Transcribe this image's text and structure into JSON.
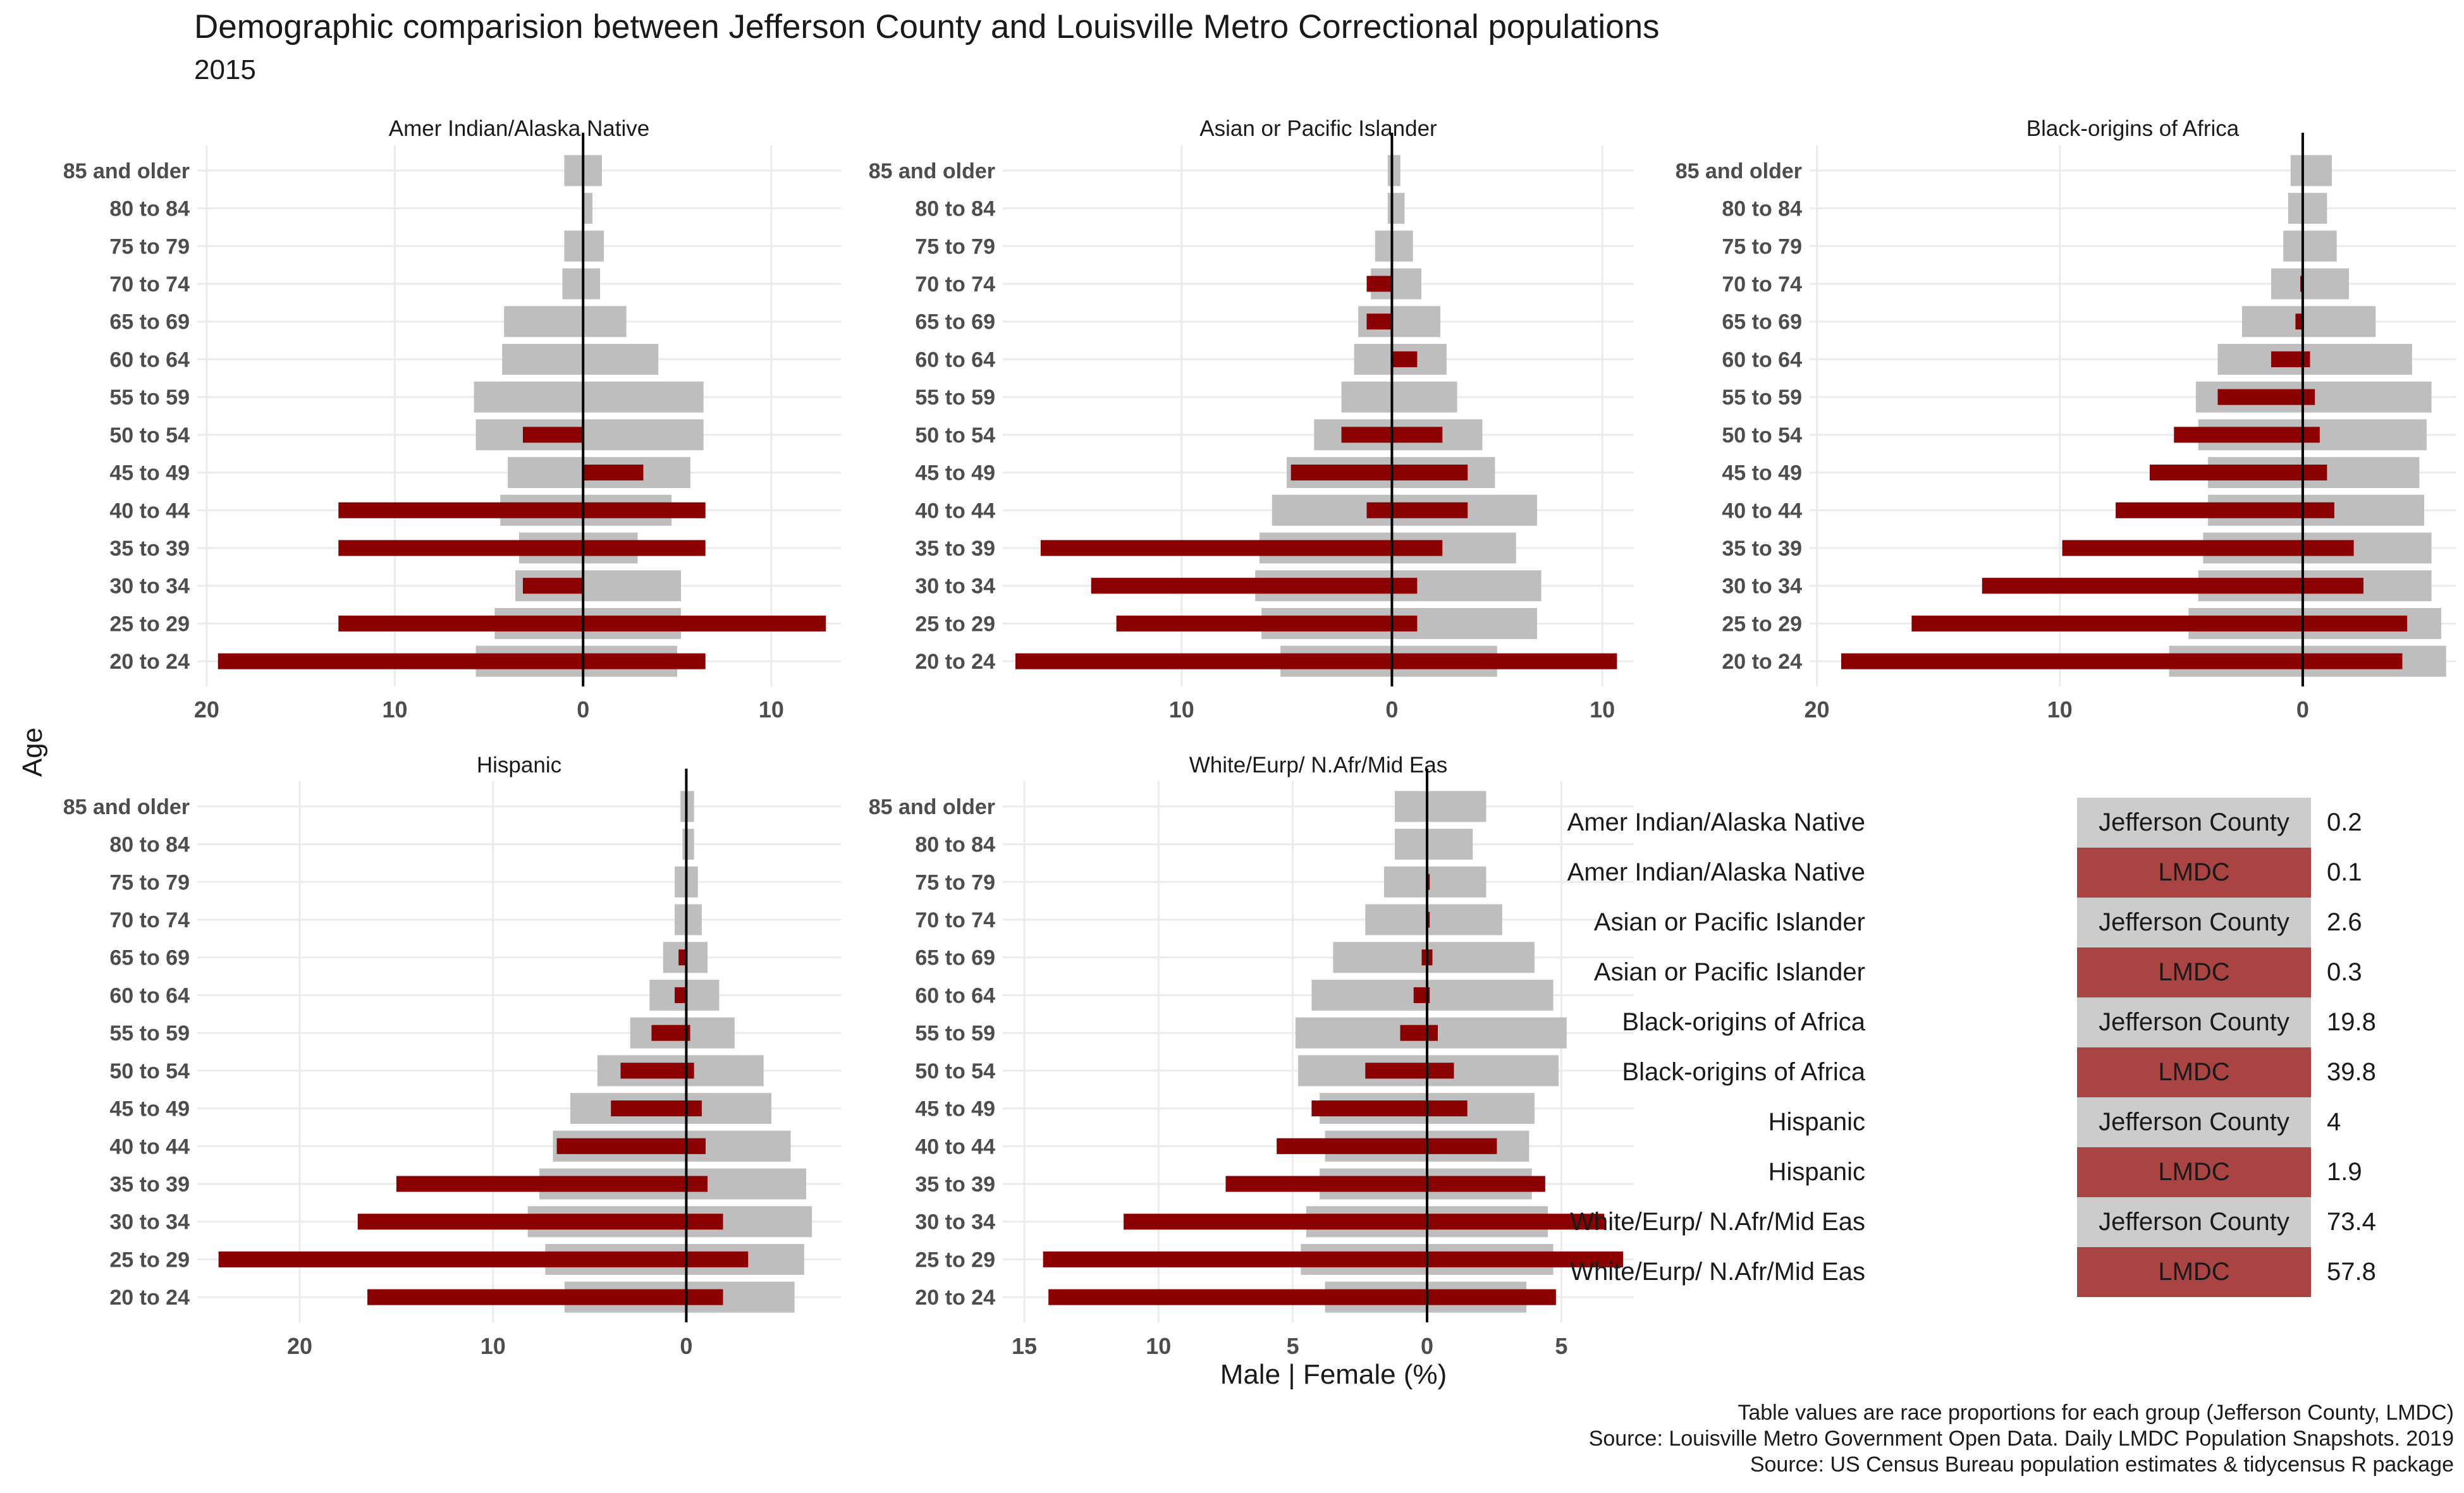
{
  "title": "Demographic comparision between Jefferson County and Louisville Metro Correctional populations",
  "subtitle": "2015",
  "ylabel": "Age",
  "xlabel": "Male | Female (%)",
  "caption": [
    "Table values are race proportions for each group (Jefferson County, LMDC)",
    "Source: Louisville Metro Government Open Data. Daily LMDC Population Snapshots. 2019",
    "Source: US Census Bureau population estimates & tidycensus R package"
  ],
  "colors": {
    "jefferson": "#bebebe",
    "lmdc": "#8b0000",
    "grid": "#ebebeb",
    "zero": "#000000",
    "table_jefferson": "#cccccc",
    "table_lmdc": "#a94442"
  },
  "chart_data": [
    {
      "type": "bar",
      "title": "Amer Indian/Alaska Native",
      "categories": [
        "85 and older",
        "80 to 84",
        "75 to 79",
        "70 to 74",
        "65 to 69",
        "60 to 64",
        "55 to 59",
        "50 to 54",
        "45 to 49",
        "40 to 44",
        "35 to 39",
        "30 to 34",
        "25 to 29",
        "20 to 24"
      ],
      "xlim": [
        -20.5,
        13.7
      ],
      "xticks": [
        -20,
        -10,
        0,
        10
      ],
      "xtick_labels": [
        "20",
        "10",
        "0",
        "10"
      ],
      "series": [
        {
          "name": "Jefferson County",
          "male": [
            1.0,
            0,
            1.0,
            1.1,
            4.2,
            4.3,
            5.8,
            5.7,
            4.0,
            4.4,
            3.4,
            3.6,
            4.7,
            5.7
          ],
          "female": [
            1.0,
            0.5,
            1.1,
            0.9,
            2.3,
            4.0,
            6.4,
            6.4,
            5.7,
            4.7,
            2.9,
            5.2,
            5.2,
            5.0
          ]
        },
        {
          "name": "LMDC",
          "male": [
            0,
            0,
            0,
            0,
            0,
            0,
            0,
            3.2,
            0,
            13.0,
            13.0,
            3.2,
            13.0,
            19.4
          ],
          "female": [
            0,
            0,
            0,
            0,
            0,
            0,
            0,
            0,
            3.2,
            6.5,
            6.5,
            0,
            12.9,
            6.5
          ]
        }
      ]
    },
    {
      "type": "bar",
      "title": "Asian or Pacific Islander",
      "categories": [
        "85 and older",
        "80 to 84",
        "75 to 79",
        "70 to 74",
        "65 to 69",
        "60 to 64",
        "55 to 59",
        "50 to 54",
        "45 to 49",
        "40 to 44",
        "35 to 39",
        "30 to 34",
        "25 to 29",
        "20 to 24"
      ],
      "xlim": [
        -18.5,
        11.5
      ],
      "xticks": [
        -10,
        0,
        10
      ],
      "xtick_labels": [
        "10",
        "0",
        "10"
      ],
      "series": [
        {
          "name": "Jefferson County",
          "male": [
            0.2,
            0.2,
            0.8,
            1.0,
            1.6,
            1.8,
            2.4,
            3.7,
            5.0,
            5.7,
            6.3,
            6.5,
            6.2,
            5.3
          ],
          "female": [
            0.4,
            0.6,
            1.0,
            1.4,
            2.3,
            2.6,
            3.1,
            4.3,
            4.9,
            6.9,
            5.9,
            7.1,
            6.9,
            5.0
          ],
          "zero_x": 0
        },
        {
          "name": "LMDC",
          "male": [
            0,
            0,
            0,
            1.2,
            1.2,
            0,
            0,
            2.4,
            4.8,
            1.2,
            16.7,
            14.3,
            13.1,
            17.9
          ],
          "female": [
            0,
            0,
            0,
            0,
            0,
            1.2,
            0,
            2.4,
            3.6,
            3.6,
            2.4,
            1.2,
            1.2,
            10.7
          ]
        }
      ]
    },
    {
      "type": "bar",
      "title": "Black-origins of Africa",
      "categories": [
        "85 and older",
        "80 to 84",
        "75 to 79",
        "70 to 74",
        "65 to 69",
        "60 to 64",
        "55 to 59",
        "50 to 54",
        "45 to 49",
        "40 to 44",
        "35 to 39",
        "30 to 34",
        "25 to 29",
        "20 to 24"
      ],
      "xlim": [
        -20.3,
        6.3
      ],
      "xticks": [
        -20,
        -10,
        0
      ],
      "xtick_labels": [
        "20",
        "10",
        "0"
      ],
      "series": [
        {
          "name": "Jefferson County",
          "male": [
            0.5,
            0.6,
            0.8,
            1.3,
            2.5,
            3.5,
            4.4,
            4.3,
            3.9,
            3.9,
            4.1,
            4.3,
            4.7,
            5.5
          ],
          "female": [
            1.2,
            1.0,
            1.4,
            1.9,
            3.0,
            4.5,
            5.3,
            5.1,
            4.8,
            5.0,
            5.3,
            5.3,
            5.7,
            5.9
          ]
        },
        {
          "name": "LMDC",
          "male": [
            0,
            0,
            0,
            0.1,
            0.3,
            1.3,
            3.5,
            5.3,
            6.3,
            7.7,
            9.9,
            13.2,
            16.1,
            19.0
          ],
          "female": [
            0,
            0,
            0,
            0,
            0,
            0.3,
            0.5,
            0.7,
            1.0,
            1.3,
            2.1,
            2.5,
            4.3,
            4.1
          ]
        }
      ]
    },
    {
      "type": "bar",
      "title": "Hispanic",
      "categories": [
        "85 and older",
        "80 to 84",
        "75 to 79",
        "70 to 74",
        "65 to 69",
        "60 to 64",
        "55 to 59",
        "50 to 54",
        "45 to 49",
        "40 to 44",
        "35 to 39",
        "30 to 34",
        "25 to 29",
        "20 to 24"
      ],
      "xlim": [
        -25.3,
        8.0
      ],
      "xticks": [
        -20,
        -10,
        0
      ],
      "xtick_labels": [
        "20",
        "10",
        "0"
      ],
      "series": [
        {
          "name": "Jefferson County",
          "male": [
            0.3,
            0.2,
            0.6,
            0.6,
            1.2,
            1.9,
            2.9,
            4.6,
            6.0,
            6.9,
            7.6,
            8.2,
            7.3,
            6.3
          ],
          "female": [
            0.4,
            0.4,
            0.6,
            0.8,
            1.1,
            1.7,
            2.5,
            4.0,
            4.4,
            5.4,
            6.2,
            6.5,
            6.1,
            5.6
          ]
        },
        {
          "name": "LMDC",
          "male": [
            0,
            0,
            0,
            0,
            0.4,
            0.6,
            1.8,
            3.4,
            3.9,
            6.7,
            15.0,
            17.0,
            24.2,
            16.5
          ],
          "female": [
            0,
            0,
            0,
            0,
            0,
            0,
            0.2,
            0.4,
            0.8,
            1.0,
            1.1,
            1.9,
            3.2,
            1.9
          ]
        }
      ]
    },
    {
      "type": "bar",
      "title": "White/Eurp/ N.Afr/Mid Eas",
      "categories": [
        "85 and older",
        "80 to 84",
        "75 to 79",
        "70 to 74",
        "65 to 69",
        "60 to 64",
        "55 to 59",
        "50 to 54",
        "45 to 49",
        "40 to 44",
        "35 to 39",
        "30 to 34",
        "25 to 29",
        "20 to 24"
      ],
      "xlim": [
        -15.8,
        7.7
      ],
      "xticks": [
        -15,
        -10,
        -5,
        0,
        5
      ],
      "xtick_labels": [
        "15",
        "10",
        "5",
        "0",
        "5"
      ],
      "series": [
        {
          "name": "Jefferson County",
          "male": [
            1.2,
            1.2,
            1.6,
            2.3,
            3.5,
            4.3,
            4.9,
            4.8,
            4.0,
            3.8,
            4.0,
            4.5,
            4.7,
            3.8
          ],
          "female": [
            2.2,
            1.7,
            2.2,
            2.8,
            4.0,
            4.7,
            5.2,
            4.9,
            4.0,
            3.8,
            3.9,
            4.5,
            4.7,
            3.7
          ]
        },
        {
          "name": "LMDC",
          "male": [
            0,
            0,
            0,
            0,
            0.2,
            0.5,
            1.0,
            2.3,
            4.3,
            5.6,
            7.5,
            11.3,
            14.3,
            14.1
          ],
          "female": [
            0,
            0,
            0.1,
            0.1,
            0.2,
            0.1,
            0.4,
            1.0,
            1.5,
            2.6,
            4.4,
            6.6,
            7.3,
            4.8
          ]
        }
      ]
    }
  ],
  "table": [
    {
      "group": "Amer Indian/Alaska Native",
      "source": "Jefferson County",
      "value": "0.2"
    },
    {
      "group": "Amer Indian/Alaska Native",
      "source": "LMDC",
      "value": "0.1"
    },
    {
      "group": "Asian or Pacific Islander",
      "source": "Jefferson County",
      "value": "2.6"
    },
    {
      "group": "Asian or Pacific Islander",
      "source": "LMDC",
      "value": "0.3"
    },
    {
      "group": "Black-origins of Africa",
      "source": "Jefferson County",
      "value": "19.8"
    },
    {
      "group": "Black-origins of Africa",
      "source": "LMDC",
      "value": "39.8"
    },
    {
      "group": "Hispanic",
      "source": "Jefferson County",
      "value": "4"
    },
    {
      "group": "Hispanic",
      "source": "LMDC",
      "value": "1.9"
    },
    {
      "group": "White/Eurp/ N.Afr/Mid Eas",
      "source": "Jefferson County",
      "value": "73.4"
    },
    {
      "group": "White/Eurp/ N.Afr/Mid Eas",
      "source": "LMDC",
      "value": "57.8"
    }
  ]
}
